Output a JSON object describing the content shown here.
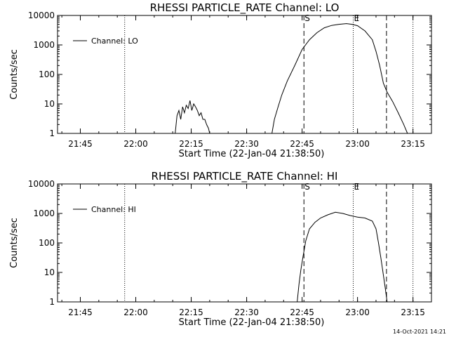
{
  "stamp": "14-Oct-2021 14:21",
  "chart_data": [
    {
      "type": "line",
      "title": "RHESSI PARTICLE_RATE Channel: LO",
      "xlabel": "Start Time (22-Jan-04 21:38:50)",
      "ylabel": "Counts/sec",
      "yscale": "log",
      "ylim": [
        1,
        10000
      ],
      "xlim": [
        "21:38:50",
        "23:20:00"
      ],
      "xticks": [
        "21:45",
        "22:00",
        "22:15",
        "22:30",
        "22:45",
        "23:00",
        "23:15"
      ],
      "yticks": [
        "1",
        "10",
        "100",
        "1000",
        "10000"
      ],
      "legend": {
        "position": "top-left",
        "entries": [
          "Channel: LO"
        ]
      },
      "series": [
        {
          "name": "Channel: LO",
          "x": [
            "22:10:40",
            "22:11:10",
            "22:11:40",
            "22:12:10",
            "22:12:40",
            "22:13:10",
            "22:13:40",
            "22:14:10",
            "22:14:40",
            "22:15:10",
            "22:15:40",
            "22:16:10",
            "22:16:40",
            "22:17:10",
            "22:17:40",
            "22:18:10",
            "22:18:40",
            "22:19:10",
            "22:19:40",
            "22:20:00",
            "22:36:50",
            "22:37:30",
            "22:38:30",
            "22:39:30",
            "22:41:00",
            "22:43:00",
            "22:45:00",
            "22:47:00",
            "22:49:00",
            "22:51:00",
            "22:53:00",
            "22:55:00",
            "22:57:00",
            "22:58:30",
            "23:00:00",
            "23:02:00",
            "23:04:00",
            "23:05:00",
            "23:06:00",
            "23:07:00",
            "23:08:00",
            "23:09:30",
            "23:11:00",
            "23:12:30",
            "23:13:30"
          ],
          "y": [
            1,
            4,
            6,
            3,
            8,
            5,
            9,
            7,
            13,
            6,
            10,
            8,
            6,
            4,
            5,
            3,
            3,
            2,
            1.5,
            1,
            1,
            3,
            8,
            20,
            60,
            200,
            700,
            1500,
            2600,
            3800,
            4600,
            5000,
            5300,
            5000,
            4500,
            3000,
            1500,
            600,
            200,
            50,
            25,
            12,
            5,
            2,
            1
          ]
        }
      ],
      "vlines": [
        {
          "x": "21:57:00",
          "style": "dotted",
          "label": ""
        },
        {
          "x": "22:45:30",
          "style": "dashed",
          "label": "S"
        },
        {
          "x": "22:58:50",
          "style": "dotted",
          "label": "E"
        },
        {
          "x": "23:07:50",
          "style": "dashed",
          "label": ""
        },
        {
          "x": "23:15:00",
          "style": "dotted",
          "label": ""
        }
      ]
    },
    {
      "type": "line",
      "title": "RHESSI PARTICLE_RATE Channel: HI",
      "xlabel": "Start Time (22-Jan-04 21:38:50)",
      "ylabel": "Counts/sec",
      "yscale": "log",
      "ylim": [
        1,
        10000
      ],
      "xlim": [
        "21:38:50",
        "23:20:00"
      ],
      "xticks": [
        "21:45",
        "22:00",
        "22:15",
        "22:30",
        "22:45",
        "23:00",
        "23:15"
      ],
      "yticks": [
        "1",
        "10",
        "100",
        "1000",
        "10000"
      ],
      "legend": {
        "position": "top-left",
        "entries": [
          "Channel: HI"
        ]
      },
      "series": [
        {
          "name": "Channel: HI",
          "x": [
            "22:43:40",
            "22:44:10",
            "22:44:40",
            "22:45:10",
            "22:46:00",
            "22:47:00",
            "22:48:30",
            "22:50:00",
            "22:52:00",
            "22:54:00",
            "22:56:00",
            "22:58:00",
            "23:00:00",
            "23:02:00",
            "23:04:00",
            "23:05:00",
            "23:05:40",
            "23:06:20",
            "23:07:00",
            "23:07:30",
            "23:08:00"
          ],
          "y": [
            1,
            4,
            12,
            30,
            120,
            300,
            500,
            700,
            900,
            1100,
            1000,
            850,
            750,
            700,
            550,
            300,
            100,
            30,
            8,
            3,
            1
          ]
        }
      ],
      "vlines": [
        {
          "x": "21:57:00",
          "style": "dotted",
          "label": ""
        },
        {
          "x": "22:45:30",
          "style": "dashed",
          "label": "S"
        },
        {
          "x": "22:58:50",
          "style": "dotted",
          "label": "E"
        },
        {
          "x": "23:07:50",
          "style": "dashed",
          "label": ""
        },
        {
          "x": "23:15:00",
          "style": "dotted",
          "label": ""
        }
      ]
    }
  ]
}
